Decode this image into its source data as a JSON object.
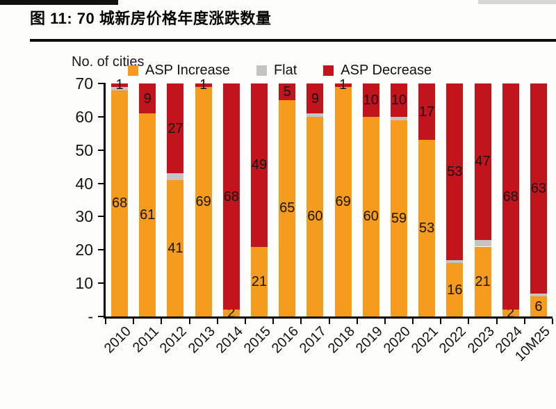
{
  "page": {
    "title": "图 11: 70 城新房价格年度涨跌数量"
  },
  "chart": {
    "axis_title": "No. of cities",
    "y_ticks": [
      {
        "label": "70",
        "value": 70
      },
      {
        "label": "60",
        "value": 60
      },
      {
        "label": "50",
        "value": 50
      },
      {
        "label": "40",
        "value": 40
      },
      {
        "label": "30",
        "value": 30
      },
      {
        "label": "20",
        "value": 20
      },
      {
        "label": "10",
        "value": 10
      },
      {
        "label": "-",
        "value": 0
      }
    ]
  },
  "chart_data": {
    "type": "bar",
    "stacked": true,
    "title": "图 11: 70 城新房价格年度涨跌数量",
    "xlabel": "",
    "ylabel": "No. of cities",
    "ylim": [
      0,
      70
    ],
    "grid": false,
    "legend_position": "top",
    "categories": [
      "2010",
      "2011",
      "2012",
      "2013",
      "2014",
      "2015",
      "2016",
      "2017",
      "2018",
      "2019",
      "2020",
      "2021",
      "2022",
      "2023",
      "2024",
      "10M25"
    ],
    "series": [
      {
        "name": "ASP Increase",
        "key": "increase",
        "color": "#F59C1E",
        "show_labels": true,
        "values": [
          68,
          61,
          41,
          69,
          2,
          21,
          65,
          60,
          69,
          60,
          59,
          53,
          16,
          21,
          2,
          6
        ]
      },
      {
        "name": "Flat",
        "key": "flat",
        "color": "#C4C4C4",
        "show_labels": false,
        "values": [
          1,
          0,
          2,
          0,
          0,
          0,
          0,
          1,
          0,
          0,
          1,
          0,
          1,
          2,
          0,
          1
        ]
      },
      {
        "name": "ASP Decrease",
        "key": "decrease",
        "color": "#C1141C",
        "show_labels": true,
        "values": [
          1,
          9,
          27,
          1,
          68,
          49,
          5,
          9,
          1,
          10,
          10,
          17,
          53,
          47,
          68,
          63
        ]
      }
    ]
  }
}
